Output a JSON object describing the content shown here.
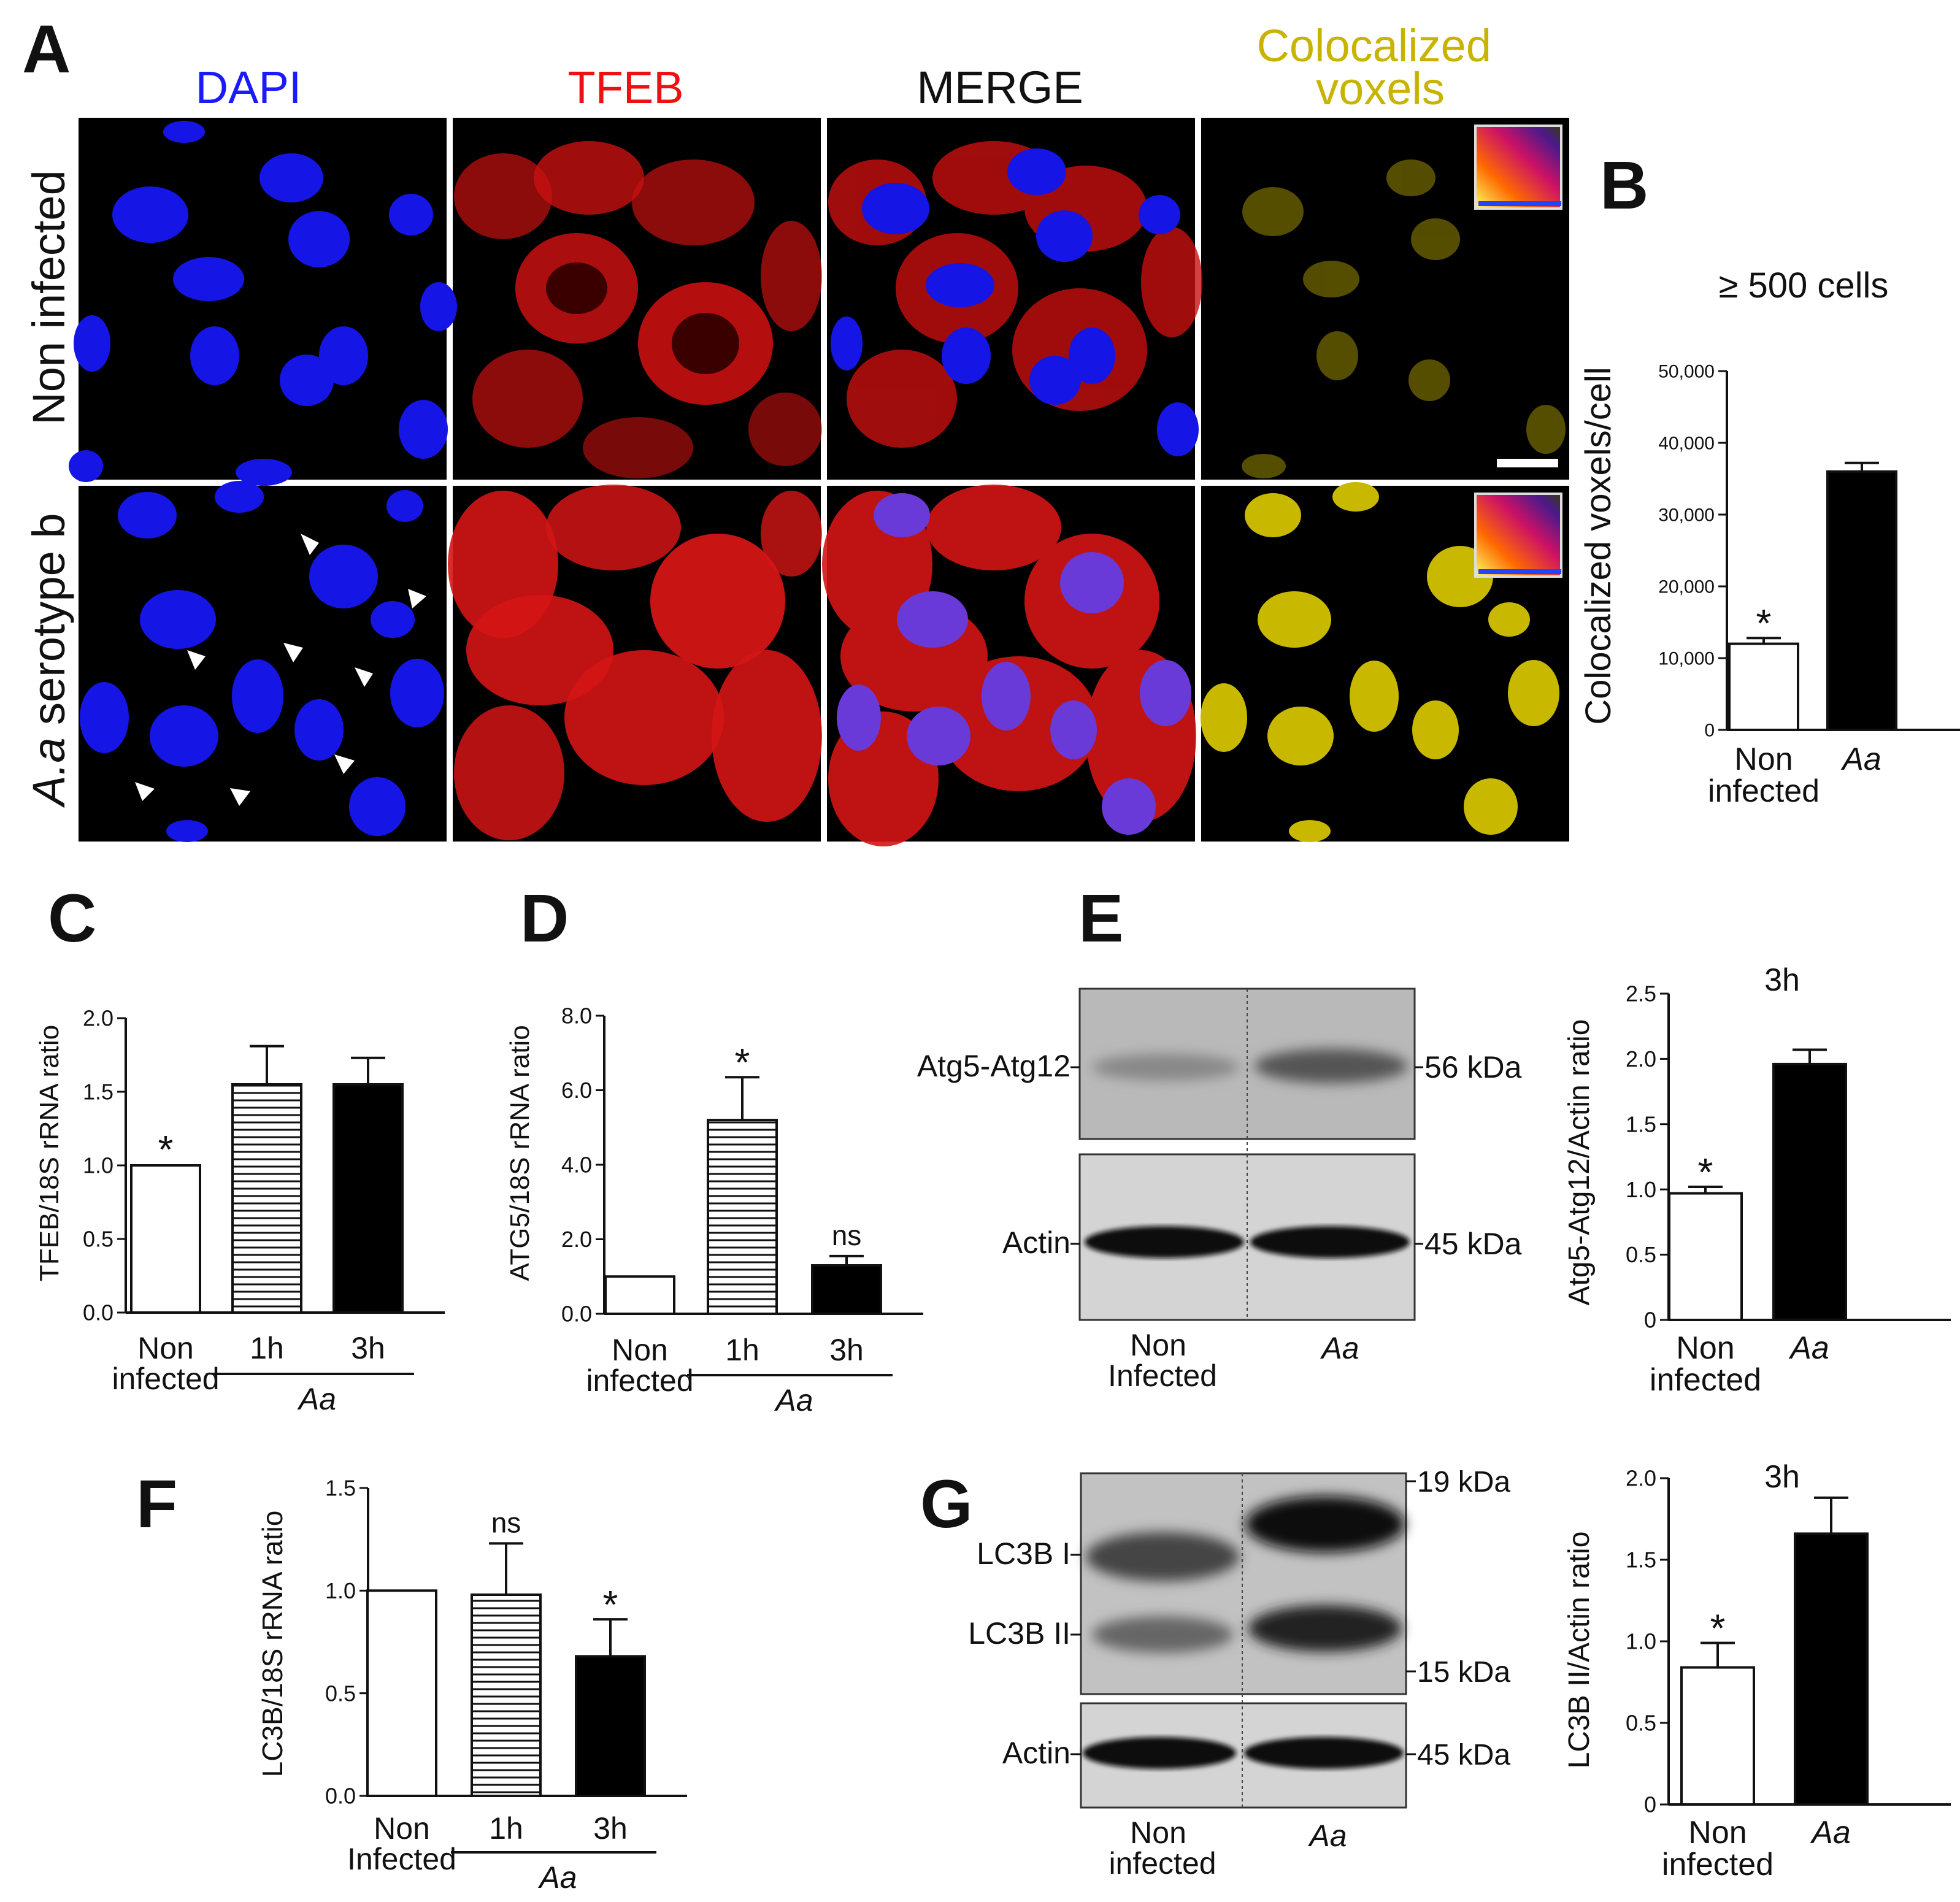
{
  "panel_letters": {
    "A": "A",
    "B": "B",
    "C": "C",
    "D": "D",
    "E": "E",
    "F": "F",
    "G": "G"
  },
  "panel_a": {
    "columns": [
      "DAPI",
      "TFEB",
      "MERGE",
      "Colocalized voxels"
    ],
    "column_colors": [
      "#1a1aff",
      "#ee1111",
      "#111111",
      "#c8b400"
    ],
    "rows": [
      "Non infected",
      "A.a serotype b"
    ]
  },
  "chart_data": [
    {
      "panel": "B",
      "type": "bar",
      "title": "≥ 500 cells",
      "ylabel": "Colocalized voxels/cell",
      "ylim": [
        0,
        50000
      ],
      "yticks": [
        "0",
        "10,000",
        "20,000",
        "30,000",
        "40,000",
        "50,000"
      ],
      "categories": [
        "Non infected",
        "Aa"
      ],
      "values": [
        12000,
        36000
      ],
      "errors": [
        800,
        1200
      ],
      "annotations": [
        "*",
        ""
      ]
    },
    {
      "panel": "C",
      "type": "bar",
      "ylabel": "TFEB/18S rRNA ratio",
      "ylim": [
        0,
        2.0
      ],
      "yticks": [
        "0.0",
        "0.5",
        "1.0",
        "1.5",
        "2.0"
      ],
      "categories": [
        "Non infected",
        "1h",
        "3h"
      ],
      "group_label": "Aa",
      "values": [
        1.0,
        1.55,
        1.55
      ],
      "errors": [
        0,
        0.26,
        0.18
      ],
      "annotations": [
        "*",
        "",
        ""
      ]
    },
    {
      "panel": "D",
      "type": "bar",
      "ylabel": "ATG5/18S rRNA ratio",
      "ylim": [
        0,
        8.0
      ],
      "yticks": [
        "0.0",
        "2.0",
        "4.0",
        "6.0",
        "8.0"
      ],
      "categories": [
        "Non infected",
        "1h",
        "3h"
      ],
      "group_label": "Aa",
      "values": [
        1.0,
        5.2,
        1.3
      ],
      "errors": [
        0,
        1.15,
        0.25
      ],
      "annotations": [
        "",
        "*",
        "ns"
      ]
    },
    {
      "panel": "E",
      "type": "bar",
      "title": "3h",
      "ylabel": "Atg5-Atg12/Actin ratio",
      "ylim": [
        0,
        2.5
      ],
      "yticks": [
        "0",
        "0.5",
        "1.0",
        "1.5",
        "2.0",
        "2.5"
      ],
      "categories": [
        "Non infected",
        "Aa"
      ],
      "values": [
        0.97,
        1.96
      ],
      "errors": [
        0.05,
        0.11
      ],
      "annotations": [
        "*",
        ""
      ]
    },
    {
      "panel": "F",
      "type": "bar",
      "ylabel": "LC3B/18S rRNA ratio",
      "ylim": [
        0,
        1.5
      ],
      "yticks": [
        "0.0",
        "0.5",
        "1.0",
        "1.5"
      ],
      "categories": [
        "Non Infected",
        "1h",
        "3h"
      ],
      "group_label": "Aa",
      "values": [
        1.0,
        0.98,
        0.68
      ],
      "errors": [
        0,
        0.25,
        0.18
      ],
      "annotations": [
        "",
        "ns",
        "*"
      ]
    },
    {
      "panel": "G",
      "type": "bar",
      "title": "3h",
      "ylabel": "LC3B II/Actin ratio",
      "ylim": [
        0,
        2.0
      ],
      "yticks": [
        "0",
        "0.5",
        "1.0",
        "1.5",
        "2.0"
      ],
      "categories": [
        "Non infected",
        "Aa"
      ],
      "values": [
        0.84,
        1.66
      ],
      "errors": [
        0.15,
        0.22
      ],
      "annotations": [
        "*",
        ""
      ]
    }
  ],
  "blot_e": {
    "band_labels": [
      "Atg5-Atg12",
      "Actin"
    ],
    "markers": [
      "56 kDa",
      "45 kDa"
    ],
    "lane_labels": [
      "Non Infected",
      "Aa"
    ]
  },
  "blot_g": {
    "band_labels": [
      "LC3B I",
      "LC3B II",
      "Actin"
    ],
    "markers": [
      "19 kDa",
      "15 kDa",
      "45 kDa"
    ],
    "lane_labels": [
      "Non infected",
      "Aa"
    ]
  }
}
